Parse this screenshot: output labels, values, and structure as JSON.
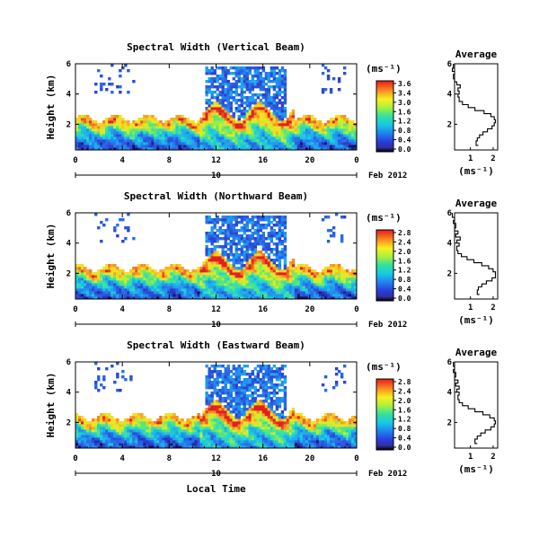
{
  "figure": {
    "xlabel": "Local Time",
    "date_suffix": "Feb 2012",
    "colorbar_unit": "(ms⁻¹)",
    "profile_title": "Average",
    "profile_xlabel": "(ms⁻¹)",
    "ylabel": "Height (km)"
  },
  "chart_data": [
    {
      "type": "heatmap",
      "title": "Spectral Width (Vertical Beam)",
      "ylabel": "Height (km)",
      "x_ticks": [
        "0",
        "4",
        "8",
        "12",
        "16",
        "20",
        "0"
      ],
      "x_range": [
        0,
        24
      ],
      "y_ticks": [
        "2",
        "4",
        "6"
      ],
      "y_range": [
        0.3,
        6
      ],
      "date_ticks": [
        "10"
      ],
      "date_suffix": "Feb 2012",
      "colorbar_unit": "(ms⁻¹)",
      "colorbar_ticks": [
        "3.6",
        "3.4",
        "3.0",
        "1.6",
        "1.2",
        "0.8",
        "0.4",
        "0.0"
      ]
    },
    {
      "type": "line",
      "title": "Average",
      "xlabel": "(ms⁻¹)",
      "x_ticks": [
        "1",
        "2"
      ],
      "y_ticks": [
        "2",
        "4",
        "6"
      ],
      "x": [
        1.35,
        1.25,
        1.3,
        1.4,
        1.55,
        1.75,
        1.95,
        2.05,
        2.1,
        2.05,
        1.9,
        1.6,
        1.2,
        0.9,
        0.65,
        0.5,
        0.45,
        0.5,
        0.45,
        0.55,
        0.4,
        0.3,
        0.25,
        0.3,
        0.2,
        0.25
      ],
      "y": [
        0.6,
        0.9,
        1.1,
        1.3,
        1.5,
        1.7,
        1.9,
        2.1,
        2.3,
        2.5,
        2.7,
        2.9,
        3.1,
        3.3,
        3.5,
        3.8,
        4.0,
        4.2,
        4.4,
        4.6,
        4.8,
        5.0,
        5.3,
        5.5,
        5.7,
        6.0
      ]
    },
    {
      "type": "heatmap",
      "title": "Spectral Width (Northward Beam)",
      "ylabel": "Height (km)",
      "x_ticks": [
        "0",
        "4",
        "8",
        "12",
        "16",
        "20",
        "0"
      ],
      "x_range": [
        0,
        24
      ],
      "y_ticks": [
        "2",
        "4",
        "6"
      ],
      "y_range": [
        0.3,
        6
      ],
      "date_ticks": [
        "10"
      ],
      "date_suffix": "Feb 2012",
      "colorbar_unit": "(ms⁻¹)",
      "colorbar_ticks": [
        "2.8",
        "2.4",
        "2.0",
        "1.6",
        "1.2",
        "0.8",
        "0.4",
        "0.0"
      ]
    },
    {
      "type": "line",
      "title": "Average",
      "xlabel": "(ms⁻¹)",
      "x_ticks": [
        "1",
        "2"
      ],
      "y_ticks": [
        "2",
        "4",
        "6"
      ],
      "x": [
        1.4,
        1.3,
        1.35,
        1.5,
        1.7,
        1.95,
        2.1,
        2.1,
        2.0,
        1.8,
        1.5,
        1.15,
        0.85,
        0.6,
        0.45,
        0.4,
        0.5,
        0.4,
        0.55,
        0.35,
        0.45,
        0.3,
        0.35,
        0.25,
        0.3,
        0.2
      ],
      "y": [
        0.6,
        0.9,
        1.1,
        1.3,
        1.5,
        1.7,
        1.9,
        2.1,
        2.3,
        2.5,
        2.7,
        2.9,
        3.1,
        3.3,
        3.5,
        3.8,
        4.0,
        4.2,
        4.4,
        4.6,
        4.8,
        5.0,
        5.3,
        5.5,
        5.7,
        6.0
      ]
    },
    {
      "type": "heatmap",
      "title": "Spectral Width (Eastward Beam)",
      "ylabel": "Height (km)",
      "x_ticks": [
        "0",
        "4",
        "8",
        "12",
        "16",
        "20",
        "0"
      ],
      "x_range": [
        0,
        24
      ],
      "y_ticks": [
        "2",
        "4",
        "6"
      ],
      "y_range": [
        0.3,
        6
      ],
      "date_ticks": [
        "10"
      ],
      "date_suffix": "Feb 2012",
      "colorbar_unit": "(ms⁻¹)",
      "colorbar_ticks": [
        "2.8",
        "2.4",
        "2.0",
        "1.6",
        "1.2",
        "0.8",
        "0.4",
        "0.0"
      ]
    },
    {
      "type": "line",
      "title": "Average",
      "xlabel": "(ms⁻¹)",
      "x_ticks": [
        "1",
        "2"
      ],
      "y_ticks": [
        "2",
        "4",
        "6"
      ],
      "x": [
        1.3,
        1.2,
        1.3,
        1.45,
        1.65,
        1.9,
        2.05,
        2.1,
        2.05,
        1.85,
        1.55,
        1.2,
        0.9,
        0.65,
        0.5,
        0.45,
        0.5,
        0.4,
        0.5,
        0.35,
        0.45,
        0.3,
        0.35,
        0.25,
        0.3,
        0.25
      ],
      "y": [
        0.6,
        0.9,
        1.1,
        1.3,
        1.5,
        1.7,
        1.9,
        2.1,
        2.3,
        2.5,
        2.7,
        2.9,
        3.1,
        3.3,
        3.5,
        3.8,
        4.0,
        4.2,
        4.4,
        4.6,
        4.8,
        5.0,
        5.3,
        5.5,
        5.7,
        6.0
      ]
    }
  ]
}
